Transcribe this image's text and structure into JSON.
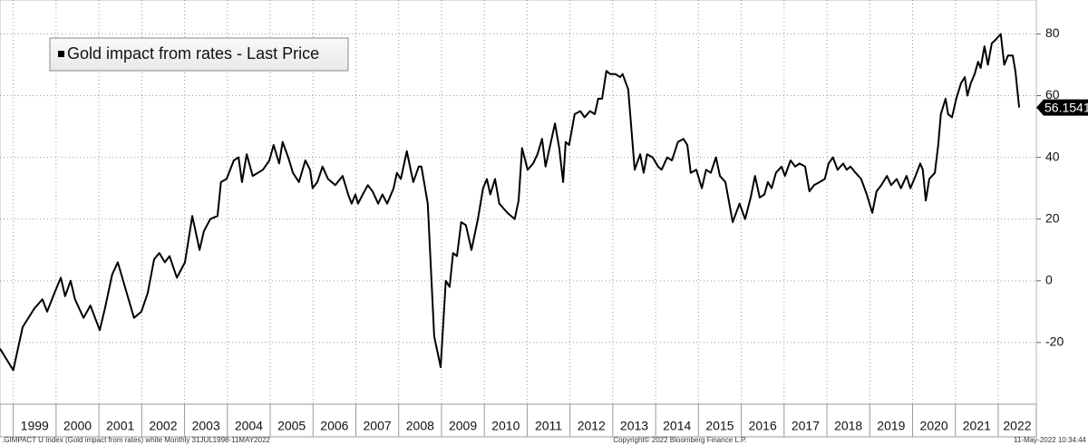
{
  "chart_data": {
    "type": "line",
    "series": [
      {
        "name": "Gold impact from rates - Last Price",
        "color": "#000000",
        "x": [
          1998.69,
          1999.0,
          1999.22,
          1999.49,
          1999.68,
          1999.79,
          1999.96,
          2000.11,
          2000.21,
          2000.34,
          2000.44,
          2000.64,
          2000.8,
          2001.02,
          2001.14,
          2001.31,
          2001.44,
          2001.65,
          2001.82,
          2001.99,
          2002.14,
          2002.29,
          2002.41,
          2002.54,
          2002.65,
          2002.82,
          2003.01,
          2003.18,
          2003.35,
          2003.45,
          2003.6,
          2003.77,
          2003.85,
          2003.98,
          2004.15,
          2004.26,
          2004.34,
          2004.45,
          2004.59,
          2004.83,
          2004.98,
          2005.08,
          2005.21,
          2005.29,
          2005.42,
          2005.53,
          2005.67,
          2005.82,
          2005.93,
          2005.99,
          2006.1,
          2006.22,
          2006.35,
          2006.52,
          2006.69,
          2006.82,
          2006.9,
          2006.99,
          2007.05,
          2007.16,
          2007.28,
          2007.39,
          2007.52,
          2007.62,
          2007.73,
          2007.88,
          2007.96,
          2008.05,
          2008.19,
          2008.34,
          2008.47,
          2008.53,
          2008.68,
          2008.83,
          2008.98,
          2009.1,
          2009.19,
          2009.27,
          2009.36,
          2009.46,
          2009.57,
          2009.7,
          2009.85,
          2009.97,
          2010.06,
          2010.14,
          2010.25,
          2010.35,
          2010.54,
          2010.71,
          2010.8,
          2010.88,
          2011.01,
          2011.14,
          2011.24,
          2011.35,
          2011.43,
          2011.54,
          2011.65,
          2011.75,
          2011.84,
          2011.9,
          2011.98,
          2012.11,
          2012.24,
          2012.34,
          2012.47,
          2012.58,
          2012.66,
          2012.75,
          2012.85,
          2012.94,
          2013.06,
          2013.17,
          2013.23,
          2013.36,
          2013.51,
          2013.64,
          2013.72,
          2013.8,
          2013.93,
          2014.06,
          2014.14,
          2014.27,
          2014.38,
          2014.52,
          2014.65,
          2014.74,
          2014.82,
          2014.95,
          2015.08,
          2015.18,
          2015.29,
          2015.41,
          2015.5,
          2015.63,
          2015.8,
          2015.96,
          2016.09,
          2016.22,
          2016.32,
          2016.43,
          2016.54,
          2016.62,
          2016.71,
          2016.81,
          2016.94,
          2017.02,
          2017.15,
          2017.26,
          2017.36,
          2017.49,
          2017.59,
          2017.7,
          2017.83,
          2017.95,
          2018.04,
          2018.14,
          2018.25,
          2018.38,
          2018.46,
          2018.55,
          2018.67,
          2018.8,
          2018.93,
          2019.06,
          2019.16,
          2019.27,
          2019.4,
          2019.5,
          2019.63,
          2019.73,
          2019.86,
          2019.95,
          2020.07,
          2020.18,
          2020.24,
          2020.31,
          2020.39,
          2020.52,
          2020.6,
          2020.66,
          2020.77,
          2020.83,
          2020.92,
          2021.02,
          2021.13,
          2021.22,
          2021.28,
          2021.36,
          2021.45,
          2021.53,
          2021.59,
          2021.68,
          2021.76,
          2021.85,
          2021.93,
          2022.06,
          2022.14,
          2022.23,
          2022.34,
          2022.4,
          2022.49
        ],
        "values": [
          -22,
          -29,
          -15,
          -9,
          -6,
          -10,
          -4,
          1,
          -5,
          0,
          -6,
          -12,
          -8,
          -16,
          -9,
          2,
          6,
          -4,
          -12,
          -10,
          -4,
          7,
          9,
          6,
          8,
          1,
          6,
          21,
          10,
          16,
          20,
          21,
          32,
          33,
          39,
          40,
          32,
          41,
          34,
          36,
          39,
          44,
          38,
          45,
          40,
          35,
          32,
          39,
          36,
          30,
          32,
          37,
          33,
          31,
          34,
          28,
          25,
          28,
          25,
          28,
          31,
          29,
          25,
          28,
          25,
          30,
          35,
          33,
          42,
          32,
          37,
          37,
          25,
          -18,
          -28,
          0,
          -2,
          9,
          8,
          19,
          18,
          10,
          20,
          30,
          33,
          28,
          33,
          25,
          22,
          20,
          26,
          43,
          36,
          38,
          41,
          46,
          37,
          44,
          51,
          43,
          32,
          45,
          44,
          54,
          55,
          53,
          55,
          54,
          59,
          59,
          68,
          67,
          67,
          66,
          67,
          62,
          36,
          41,
          35,
          41,
          40,
          37,
          36,
          40,
          39,
          45,
          46,
          44,
          35,
          36,
          30,
          36,
          35,
          40,
          34,
          32,
          19,
          25,
          20,
          27,
          34,
          27,
          28,
          32,
          30,
          35,
          37,
          34,
          39,
          37,
          38,
          37,
          29,
          31,
          32,
          33,
          38,
          40,
          36,
          38,
          36,
          37,
          35,
          33,
          28,
          22,
          29,
          31,
          34,
          31,
          33,
          30,
          34,
          30,
          34,
          38,
          36,
          26,
          33,
          35,
          44,
          54,
          59,
          54,
          53,
          59,
          64,
          66,
          60,
          64,
          67,
          71,
          69,
          76,
          70,
          77,
          78,
          80,
          70,
          73,
          73,
          68,
          56.1541
        ]
      }
    ],
    "xlim": [
      1998.69,
      2022.89
    ],
    "xticks": [
      1999,
      2000,
      2001,
      2002,
      2003,
      2004,
      2005,
      2006,
      2007,
      2008,
      2009,
      2010,
      2011,
      2012,
      2013,
      2014,
      2015,
      2016,
      2017,
      2018,
      2019,
      2020,
      2021,
      2022
    ],
    "ylim": [
      -40,
      91
    ],
    "yticks": [
      -20,
      0,
      20,
      40,
      60,
      80
    ],
    "grid": true,
    "legend": "top-left",
    "footer": [
      ".GIMPACT U Index (Gold impact from rates) white  Monthly 31JUL1998-11MAY2022",
      "Copyright© 2022 Bloomberg Finance L.P.",
      "11-May-2022 10:34:44"
    ]
  }
}
